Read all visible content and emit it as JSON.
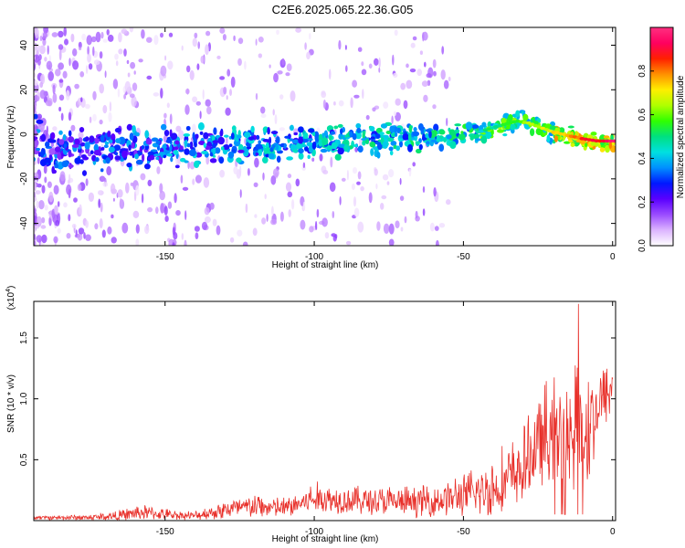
{
  "figure_title": "C2E6.2025.065.22.36.G05",
  "chart_data": [
    {
      "type": "heatmap",
      "title": "C2E6.2025.065.22.36.G05",
      "xlabel": "Height of straight line (km)",
      "ylabel": "Frequency (Hz)",
      "xlim": [
        -194,
        1
      ],
      "ylim": [
        -50,
        48
      ],
      "x_ticks": [
        -150,
        -100,
        -50,
        0
      ],
      "x_tick_labels": [
        "-150",
        "-100",
        "-50",
        "0"
      ],
      "y_ticks": [
        -40,
        -20,
        0,
        20,
        40
      ],
      "y_tick_labels": [
        "-40",
        "-20",
        "0",
        "20",
        "40"
      ],
      "ridge": [
        {
          "x": -190,
          "y": -9
        },
        {
          "x": -170,
          "y": -7
        },
        {
          "x": -150,
          "y": -6
        },
        {
          "x": -125,
          "y": -5
        },
        {
          "x": -100,
          "y": -4
        },
        {
          "x": -75,
          "y": -2
        },
        {
          "x": -50,
          "y": -1
        },
        {
          "x": -40,
          "y": 3
        },
        {
          "x": -32,
          "y": 6
        },
        {
          "x": -28,
          "y": 5
        },
        {
          "x": -20,
          "y": 1
        },
        {
          "x": -10,
          "y": -2
        },
        {
          "x": -5,
          "y": -3
        },
        {
          "x": 0,
          "y": -3
        }
      ],
      "colorbar": {
        "label": "Normalized spectral amplitude",
        "range": [
          0,
          1
        ],
        "ticks": [
          0.0,
          0.2,
          0.4,
          0.6,
          0.8
        ],
        "tick_labels": [
          "0.0",
          "0.2",
          "0.4",
          "0.6",
          "0.8"
        ],
        "colors": [
          "#ffffff",
          "#dcb4ff",
          "#9a4bff",
          "#5a00ff",
          "#0018ff",
          "#0090ff",
          "#00e0e0",
          "#00e080",
          "#30ff00",
          "#b0ff00",
          "#ffee00",
          "#ff9000",
          "#ff2000",
          "#ff0060",
          "#ff3080"
        ]
      }
    },
    {
      "type": "line",
      "xlabel": "Height of straight line (km)",
      "ylabel": "SNR (10 * v/v)",
      "y_scale_label": "(x10",
      "y_scale_exponent": "4",
      "y_scale_suffix": ")",
      "xlim": [
        -194,
        1
      ],
      "ylim": [
        0,
        1.8
      ],
      "x_ticks": [
        -150,
        -100,
        -50,
        0
      ],
      "x_tick_labels": [
        "-150",
        "-100",
        "-50",
        "0"
      ],
      "y_ticks": [
        0.5,
        1.0,
        1.5
      ],
      "y_tick_labels": [
        "0.5",
        "1.0",
        "1.5"
      ],
      "color": "#e8302a",
      "envelope": [
        {
          "x": -194,
          "base": 0.02,
          "amp": 0.02
        },
        {
          "x": -175,
          "base": 0.02,
          "amp": 0.03
        },
        {
          "x": -165,
          "base": 0.03,
          "amp": 0.05
        },
        {
          "x": -158,
          "base": 0.05,
          "amp": 0.08
        },
        {
          "x": -150,
          "base": 0.04,
          "amp": 0.05
        },
        {
          "x": -140,
          "base": 0.03,
          "amp": 0.04
        },
        {
          "x": -130,
          "base": 0.07,
          "amp": 0.1
        },
        {
          "x": -120,
          "base": 0.09,
          "amp": 0.12
        },
        {
          "x": -110,
          "base": 0.08,
          "amp": 0.1
        },
        {
          "x": -100,
          "base": 0.15,
          "amp": 0.15
        },
        {
          "x": -90,
          "base": 0.14,
          "amp": 0.14
        },
        {
          "x": -80,
          "base": 0.13,
          "amp": 0.15
        },
        {
          "x": -70,
          "base": 0.12,
          "amp": 0.14
        },
        {
          "x": -60,
          "base": 0.13,
          "amp": 0.16
        },
        {
          "x": -50,
          "base": 0.16,
          "amp": 0.2
        },
        {
          "x": -40,
          "base": 0.2,
          "amp": 0.3
        },
        {
          "x": -30,
          "base": 0.35,
          "amp": 0.35
        },
        {
          "x": -25,
          "base": 0.55,
          "amp": 0.45
        },
        {
          "x": -20,
          "base": 0.55,
          "amp": 0.55
        },
        {
          "x": -15,
          "base": 0.5,
          "amp": 0.6
        },
        {
          "x": -10,
          "base": 0.5,
          "amp": 0.75
        },
        {
          "x": -5,
          "base": 0.85,
          "amp": 0.35
        },
        {
          "x": 0,
          "base": 1.05,
          "amp": 0.3
        }
      ]
    }
  ]
}
